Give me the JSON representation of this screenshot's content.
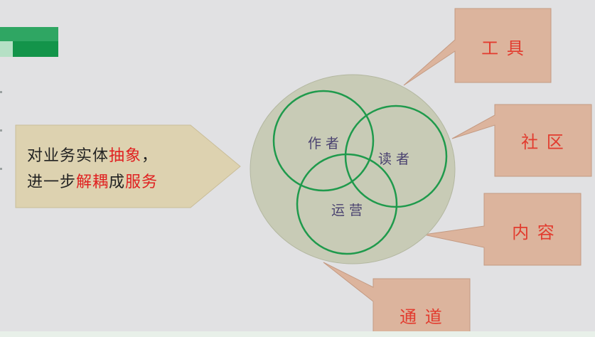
{
  "arrow_text": {
    "line1": [
      {
        "text": "对业务实体",
        "color": "#222222"
      },
      {
        "text": "抽象",
        "color": "#e02020"
      },
      {
        "text": "，",
        "color": "#222222"
      }
    ],
    "line2": [
      {
        "text": "进一步",
        "color": "#222222"
      },
      {
        "text": "解耦",
        "color": "#e02020"
      },
      {
        "text": "成",
        "color": "#222222"
      },
      {
        "text": "服务",
        "color": "#e02020"
      }
    ]
  },
  "venn": {
    "circles": [
      "作 者",
      "读 者",
      "运 营"
    ]
  },
  "callouts": {
    "tools": "工 具",
    "community": "社 区",
    "content": "内 容",
    "channel": "通 道"
  },
  "colors": {
    "background": "#e1e1e3",
    "arrow_fill": "#ddd2b0",
    "callout_fill": "#dcb49d",
    "callout_text": "#e23b2e",
    "venn_bg": "#c8cbb6",
    "circle_stroke": "#1f9a4c",
    "venn_text": "#4a4270",
    "logo_green": "#13944a"
  }
}
